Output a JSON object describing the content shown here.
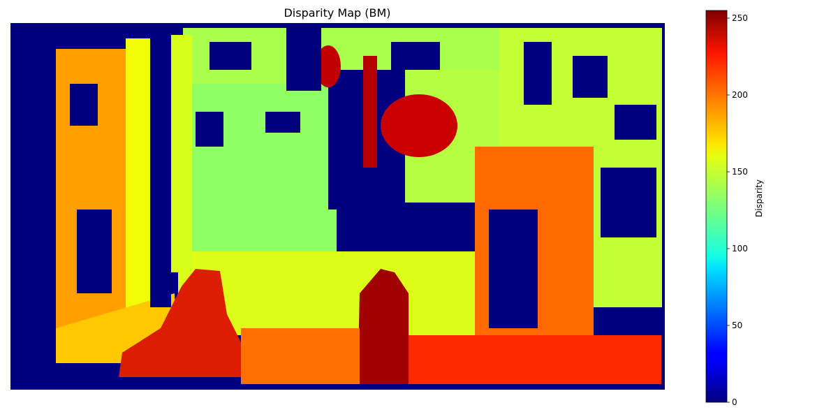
{
  "chart_data": {
    "type": "heatmap",
    "title": "Disparity Map (BM)",
    "colormap": "jet",
    "axes_visible": false,
    "grid": false,
    "colorbar": {
      "label": "Disparity",
      "range": [
        0,
        255
      ],
      "ticks": [
        0,
        50,
        100,
        150,
        200,
        250
      ],
      "tick_labels": [
        "0",
        "50",
        "100",
        "150",
        "200",
        "250"
      ],
      "placement": "right"
    },
    "colors": {
      "background": "#00008b",
      "low": "#00007f",
      "high": "#7f0000"
    }
  }
}
